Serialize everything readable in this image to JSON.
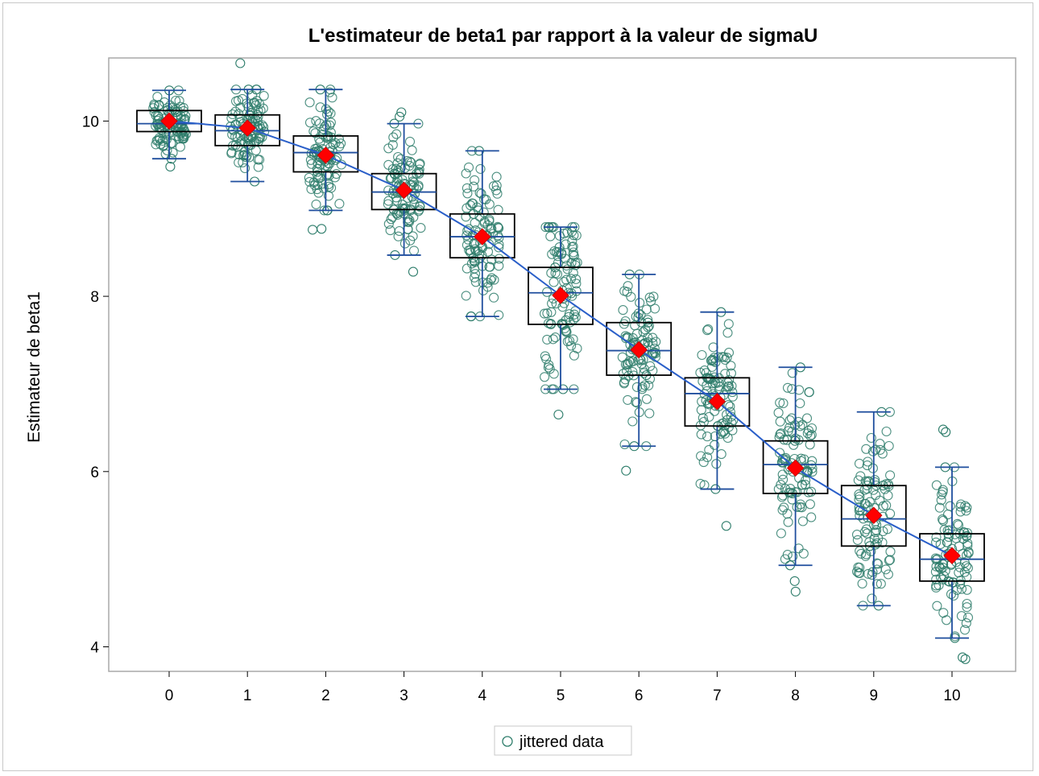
{
  "chart_data": {
    "type": "box",
    "title": "L'estimateur de beta1 par rapport à la valeur de sigmaU",
    "xlabel": "",
    "ylabel": "Estimateur de beta1",
    "categories": [
      "0",
      "1",
      "2",
      "3",
      "4",
      "5",
      "6",
      "7",
      "8",
      "9",
      "10"
    ],
    "ylim": [
      3.72,
      10.72
    ],
    "yticks": [
      "4",
      "6",
      "8",
      "10"
    ],
    "grid": false,
    "boxes": [
      {
        "x": "0",
        "min": 9.57,
        "q1": 9.88,
        "median": 9.97,
        "q3": 10.12,
        "max": 10.35,
        "mean": 10.0
      },
      {
        "x": "1",
        "min": 9.31,
        "q1": 9.72,
        "median": 9.89,
        "q3": 10.07,
        "max": 10.36,
        "mean": 9.92
      },
      {
        "x": "2",
        "min": 8.98,
        "q1": 9.42,
        "median": 9.64,
        "q3": 9.83,
        "max": 10.36,
        "mean": 9.61
      },
      {
        "x": "3",
        "min": 8.47,
        "q1": 8.99,
        "median": 9.19,
        "q3": 9.4,
        "max": 9.97,
        "mean": 9.21
      },
      {
        "x": "4",
        "min": 7.77,
        "q1": 8.44,
        "median": 8.68,
        "q3": 8.94,
        "max": 9.66,
        "mean": 8.68
      },
      {
        "x": "5",
        "min": 6.94,
        "q1": 7.68,
        "median": 8.04,
        "q3": 8.33,
        "max": 8.79,
        "mean": 8.01
      },
      {
        "x": "6",
        "min": 6.29,
        "q1": 7.1,
        "median": 7.38,
        "q3": 7.7,
        "max": 8.25,
        "mean": 7.39
      },
      {
        "x": "7",
        "min": 5.8,
        "q1": 6.52,
        "median": 6.89,
        "q3": 7.07,
        "max": 7.82,
        "mean": 6.8
      },
      {
        "x": "8",
        "min": 4.93,
        "q1": 5.75,
        "median": 6.08,
        "q3": 6.35,
        "max": 7.19,
        "mean": 6.04
      },
      {
        "x": "9",
        "min": 4.47,
        "q1": 5.15,
        "median": 5.46,
        "q3": 5.84,
        "max": 6.68,
        "mean": 5.5
      },
      {
        "x": "10",
        "min": 4.1,
        "q1": 4.75,
        "median": 5.0,
        "q3": 5.29,
        "max": 6.05,
        "mean": 5.04
      }
    ],
    "points_per_group": 100,
    "outliers": [
      {
        "x": "0",
        "values": [
          9.48
        ]
      },
      {
        "x": "1",
        "values": [
          10.66
        ]
      },
      {
        "x": "2",
        "values": [
          8.77,
          8.76
        ]
      },
      {
        "x": "3",
        "values": [
          10.1,
          10.05,
          8.28
        ]
      },
      {
        "x": "5",
        "values": [
          6.65
        ]
      },
      {
        "x": "6",
        "values": [
          6.01
        ]
      },
      {
        "x": "7",
        "values": [
          5.38
        ]
      },
      {
        "x": "8",
        "values": [
          4.75,
          4.63
        ]
      },
      {
        "x": "10",
        "values": [
          6.48,
          6.45,
          3.88,
          3.86
        ]
      }
    ],
    "legend": {
      "label": "jittered data",
      "position": "bottom-center"
    },
    "colors": {
      "points": "#2e7d6b",
      "box": "#000000",
      "whisker": "#1f4e9e",
      "median": "#1f4e9e",
      "mean_line": "#2a5fc9",
      "mean_marker": "#ff0000",
      "frame": "#a8a8a8"
    }
  }
}
